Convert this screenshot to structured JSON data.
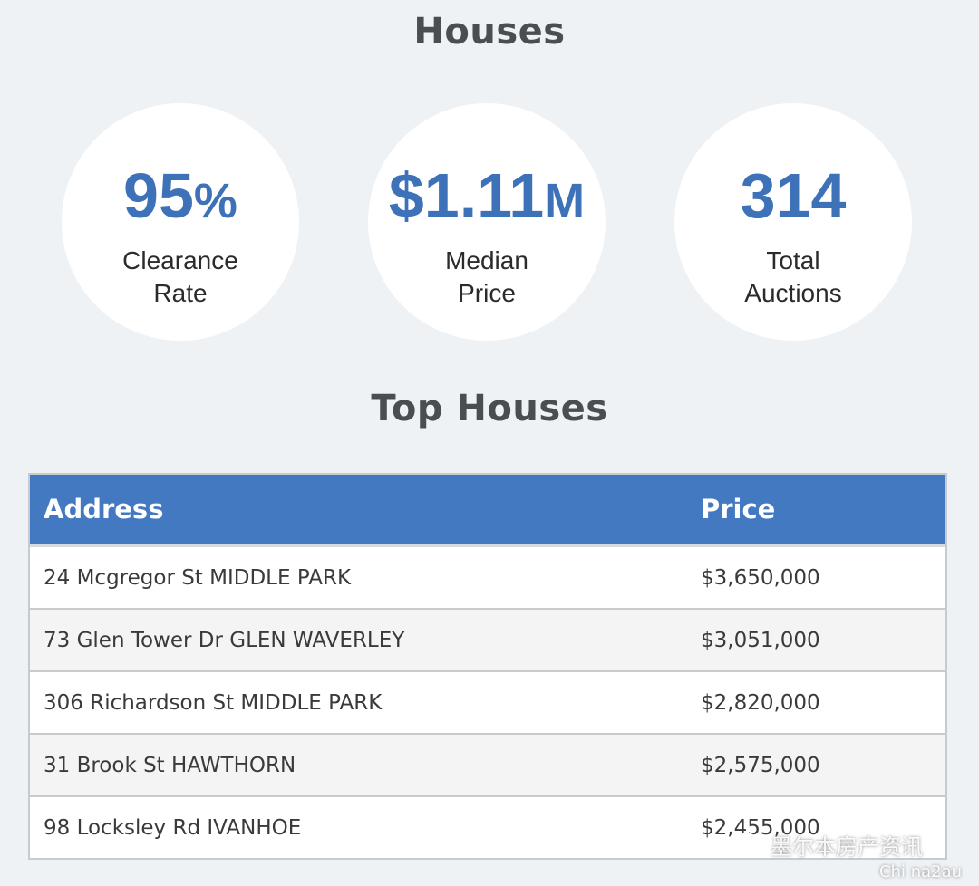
{
  "header": {
    "title": "Houses"
  },
  "stats": [
    {
      "value": "95",
      "unit": "%",
      "label_line1": "Clearance",
      "label_line2": "Rate"
    },
    {
      "value": "$1.11",
      "unit": "M",
      "label_line1": "Median",
      "label_line2": "Price"
    },
    {
      "value": "314",
      "unit": "",
      "label_line1": "Total",
      "label_line2": "Auctions"
    }
  ],
  "top_houses": {
    "title": "Top Houses",
    "columns": [
      "Address",
      "Price"
    ],
    "rows": [
      {
        "address": "24 Mcgregor St MIDDLE PARK",
        "price": "$3,650,000"
      },
      {
        "address": "73 Glen Tower Dr GLEN WAVERLEY",
        "price": "$3,051,000"
      },
      {
        "address": "306 Richardson St MIDDLE PARK",
        "price": "$2,820,000"
      },
      {
        "address": "31 Brook St HAWTHORN",
        "price": "$2,575,000"
      },
      {
        "address": "98 Locksley Rd IVANHOE",
        "price": "$2,455,000"
      }
    ]
  },
  "watermark": {
    "text": "墨尔本房产资讯",
    "sub": "Chi na2au",
    "icon": "wechat-icon"
  },
  "colors": {
    "accent": "#3e72b8",
    "header_bg": "#4279c1",
    "page_bg": "#eef2f5"
  }
}
